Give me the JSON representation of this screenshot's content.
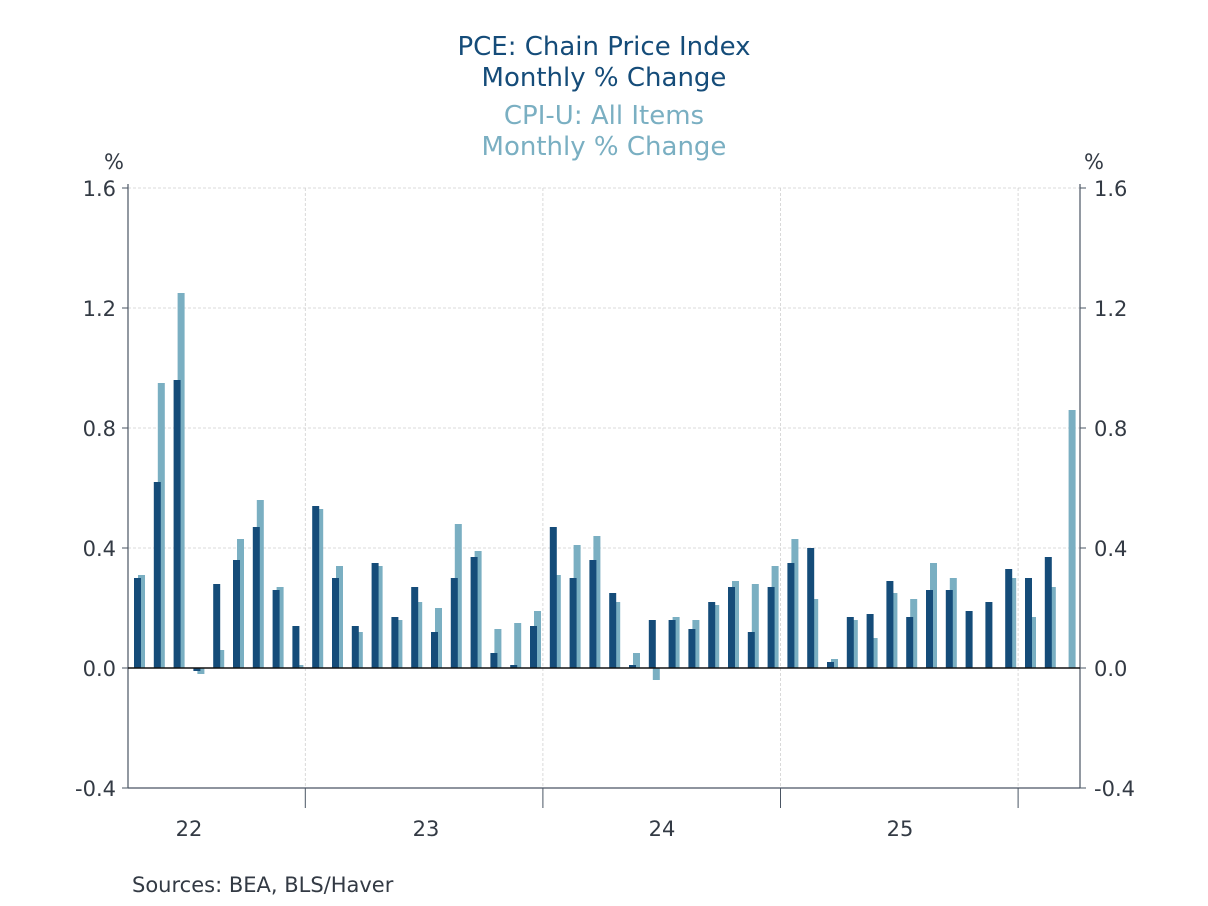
{
  "title": {
    "line1": "PCE: Chain Price Index",
    "line2": "Monthly % Change",
    "line3": "CPI-U: All Items",
    "line4": "Monthly % Change"
  },
  "axis_unit_left": "%",
  "axis_unit_right": "%",
  "source": "Sources:  BEA, BLS/Haver",
  "colors": {
    "pce": "#154c79",
    "cpi": "#7aafc2",
    "axis": "#4a5563",
    "grid": "#d0d0d0"
  },
  "chart_data": {
    "type": "bar",
    "title": "PCE: Chain Price Index Monthly % Change / CPI-U: All Items Monthly % Change",
    "xlabel": "",
    "ylabel": "%",
    "ylim": [
      -0.4,
      1.6
    ],
    "yticks": [
      "1.6",
      "1.2",
      "0.8",
      "0.4",
      "0.0",
      "-0.4"
    ],
    "ytick_values": [
      1.6,
      1.2,
      0.8,
      0.4,
      0.0,
      -0.4
    ],
    "xtick_labels": [
      "22",
      "23",
      "24",
      "25"
    ],
    "grid": true,
    "legend": "title-top-center",
    "categories": [
      "2022-04",
      "2022-05",
      "2022-06",
      "2022-07",
      "2022-08",
      "2022-09",
      "2022-10",
      "2022-11",
      "2022-12",
      "2023-01",
      "2023-02",
      "2023-03",
      "2023-04",
      "2023-05",
      "2023-06",
      "2023-07",
      "2023-08",
      "2023-09",
      "2023-10",
      "2023-11",
      "2023-12",
      "2024-01",
      "2024-02",
      "2024-03",
      "2024-04",
      "2024-05",
      "2024-06",
      "2024-07",
      "2024-08",
      "2024-09",
      "2024-10",
      "2024-11",
      "2024-12",
      "2025-01",
      "2025-02",
      "2025-03",
      "2025-04",
      "2025-05",
      "2025-06",
      "2025-07",
      "2025-08",
      "2025-09",
      "2025-10",
      "2025-11",
      "2025-12",
      "2026-01",
      "2026-02",
      "2026-03"
    ],
    "series": [
      {
        "name": "PCE: Chain Price Index, Monthly % Change",
        "values": [
          0.3,
          0.62,
          0.96,
          -0.01,
          0.28,
          0.36,
          0.47,
          0.26,
          0.14,
          0.54,
          0.3,
          0.14,
          0.35,
          0.17,
          0.27,
          0.12,
          0.3,
          0.37,
          0.05,
          0.01,
          0.14,
          0.47,
          0.3,
          0.36,
          0.25,
          0.01,
          0.16,
          0.16,
          0.13,
          0.22,
          0.27,
          0.12,
          0.27,
          0.35,
          0.4,
          0.02,
          0.17,
          0.18,
          0.29,
          0.17,
          0.26,
          0.26,
          0.19,
          0.22,
          0.33,
          0.3,
          0.37,
          null
        ]
      },
      {
        "name": "CPI-U: All Items, Monthly % Change",
        "values": [
          0.31,
          0.95,
          1.25,
          -0.02,
          0.06,
          0.43,
          0.56,
          0.27,
          0.01,
          0.53,
          0.34,
          0.12,
          0.34,
          0.16,
          0.22,
          0.2,
          0.48,
          0.39,
          0.13,
          0.15,
          0.19,
          0.31,
          0.41,
          0.44,
          0.22,
          0.05,
          -0.04,
          0.17,
          0.16,
          0.21,
          0.29,
          0.28,
          0.34,
          0.43,
          0.23,
          0.03,
          0.16,
          0.1,
          0.25,
          0.23,
          0.35,
          0.3,
          null,
          null,
          0.3,
          0.17,
          0.27,
          0.86
        ]
      }
    ]
  }
}
